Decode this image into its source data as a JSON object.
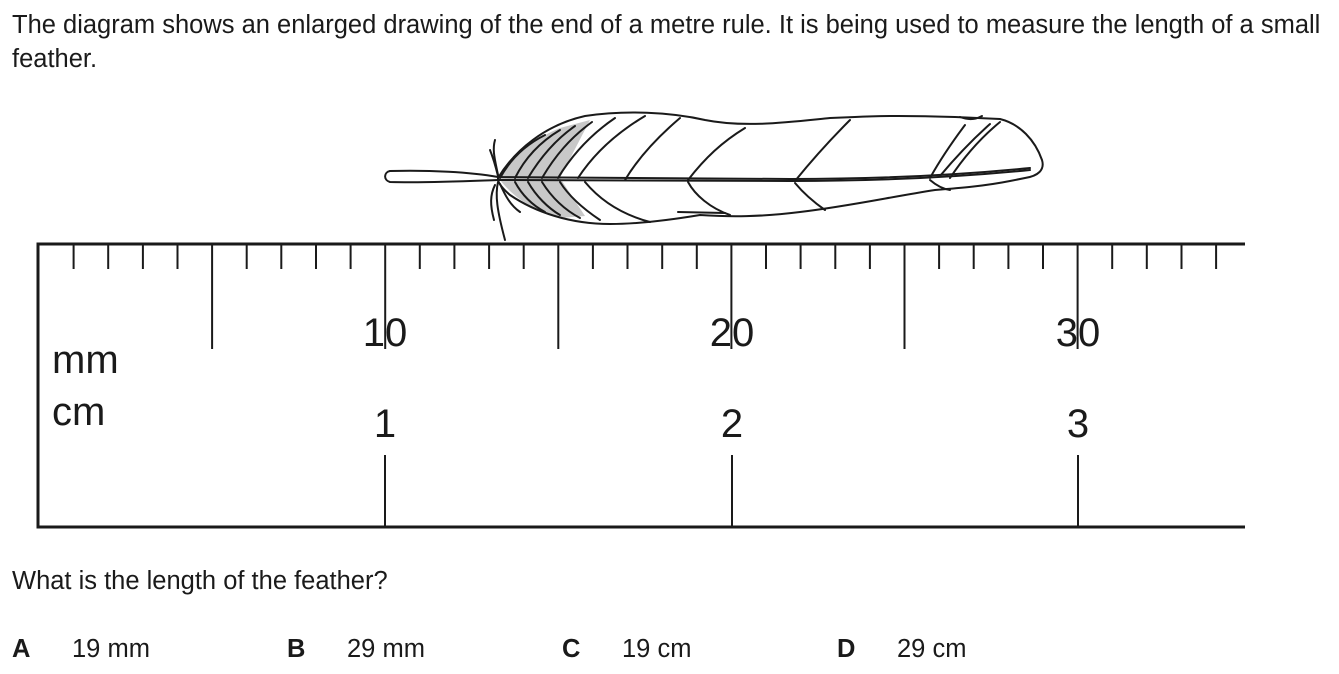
{
  "intro_text": "The diagram shows an enlarged drawing of the end of a metre rule. It is being used to measure the length of a small feather.",
  "ruler": {
    "mm_label": "mm",
    "cm_label": "cm",
    "mm_numbers": [
      "10",
      "20",
      "30"
    ],
    "cm_numbers": [
      "1",
      "2",
      "3"
    ]
  },
  "question": "What is the length of the feather?",
  "options": [
    {
      "letter": "A",
      "text": "19 mm"
    },
    {
      "letter": "B",
      "text": "29 mm"
    },
    {
      "letter": "C",
      "text": "19 cm"
    },
    {
      "letter": "D",
      "text": "29 cm"
    }
  ]
}
